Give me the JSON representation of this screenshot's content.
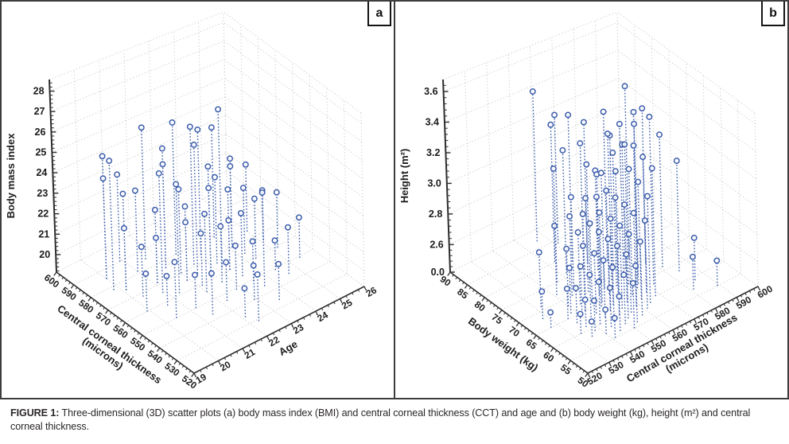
{
  "figure": {
    "caption_label": "FIGURE 1:",
    "caption_line1": " Three-dimensional (3D) scatter plots (a) body mass index (BMI) and central corneal thickness (CCT) and age and (b) body weight (kg), height (m²) and central",
    "caption_line2": "corneal thickness."
  },
  "colors": {
    "marker": "#3c5dab",
    "grid": "#c9c9c9",
    "axis": "#2e2e2e",
    "text": "#1c1c1c",
    "border": "#3d3d3d"
  },
  "chart_data": [
    {
      "type": "scatter3d",
      "panel_label": "a",
      "u_axis": {
        "title_lines": [
          "Age"
        ],
        "range": [
          19,
          26
        ],
        "tick_labels": [
          "19",
          "20",
          "21",
          "22",
          "23",
          "24",
          "25",
          "26"
        ],
        "minors_between": 3
      },
      "v_axis": {
        "title_lines": [
          "Central corneal thickness",
          "(microns)"
        ],
        "range": [
          520,
          600
        ],
        "tick_labels": [
          "520",
          "530",
          "540",
          "550",
          "560",
          "570",
          "580",
          "590",
          "600"
        ],
        "minors_between": 4
      },
      "z_axis": {
        "title": "Body mass index",
        "map": {
          "z0": 19.14,
          "h0": 0,
          "k": 0.1061
        },
        "ticks": [
          [
            "20",
            0.091
          ],
          [
            "21",
            0.197
          ],
          [
            "22",
            0.303
          ],
          [
            "23",
            0.41
          ],
          [
            "24",
            0.516
          ],
          [
            "25",
            0.622
          ],
          [
            "26",
            0.728
          ],
          [
            "27",
            0.834
          ],
          [
            "28",
            0.94
          ]
        ]
      },
      "points": [
        [
          20,
          585,
          24.1
        ],
        [
          20,
          585,
          25.2
        ],
        [
          19.8,
          578,
          25.5
        ],
        [
          20.1,
          575,
          23.9
        ],
        [
          20.1,
          575,
          22.2
        ],
        [
          20.3,
          568,
          21.6
        ],
        [
          19.9,
          560,
          21
        ],
        [
          20.6,
          558,
          20.6
        ],
        [
          20.4,
          550,
          21.9
        ],
        [
          20.9,
          590,
          23.5
        ],
        [
          21,
          581,
          23.2
        ],
        [
          21.1,
          571,
          22.8
        ],
        [
          21.1,
          571,
          21.4
        ],
        [
          20.9,
          565,
          25.1
        ],
        [
          21.3,
          561,
          24.6
        ],
        [
          21.2,
          550,
          20.8
        ],
        [
          21.4,
          543,
          21.2
        ],
        [
          21.6,
          585,
          25.8
        ],
        [
          21.8,
          576,
          25.2
        ],
        [
          21.8,
          576,
          24.4
        ],
        [
          22,
          570,
          23.4
        ],
        [
          21.9,
          565,
          22.9
        ],
        [
          21.9,
          565,
          22.1
        ],
        [
          22.1,
          559,
          21.8
        ],
        [
          22,
          555,
          23.1
        ],
        [
          22.2,
          546,
          21.1
        ],
        [
          22.1,
          534,
          20.6
        ],
        [
          22.3,
          529,
          21.5
        ],
        [
          22.5,
          580,
          25.9
        ],
        [
          22.6,
          571,
          26.2
        ],
        [
          22.4,
          566,
          25.7
        ],
        [
          22.6,
          561,
          24.8
        ],
        [
          22.6,
          561,
          23.7
        ],
        [
          22.7,
          556,
          22
        ],
        [
          22.8,
          549,
          21.4
        ],
        [
          22.9,
          540,
          20.9
        ],
        [
          23.1,
          574,
          25.6
        ],
        [
          23.2,
          563,
          27.3
        ],
        [
          23.2,
          566,
          23.6
        ],
        [
          23.3,
          560,
          23.3
        ],
        [
          23.3,
          560,
          21.7
        ],
        [
          23.4,
          554,
          22.4
        ],
        [
          23.5,
          549,
          21.2
        ],
        [
          23.6,
          544,
          24
        ],
        [
          23.5,
          534,
          21
        ],
        [
          24,
          579,
          24.9
        ],
        [
          24.1,
          570,
          23.8
        ],
        [
          24.1,
          570,
          23.4
        ],
        [
          24.2,
          564,
          22.6
        ],
        [
          24.3,
          559,
          22.3
        ],
        [
          24.4,
          549,
          20.7
        ],
        [
          24.6,
          544,
          21.6
        ],
        [
          25,
          574,
          22.7
        ],
        [
          25.1,
          566,
          21.8
        ],
        [
          25.2,
          559,
          22.1
        ],
        [
          25.4,
          549,
          21.3
        ]
      ]
    },
    {
      "type": "scatter3d",
      "panel_label": "b",
      "u_axis": {
        "title_lines": [
          "Central corneal thickness",
          "(microns)"
        ],
        "range": [
          520,
          600
        ],
        "tick_labels": [
          "520",
          "530",
          "540",
          "550",
          "560",
          "570",
          "580",
          "590",
          "600"
        ],
        "minors_between": 4
      },
      "v_axis": {
        "title_lines": [
          "Body weight (kg)"
        ],
        "range": [
          50,
          90
        ],
        "tick_labels": [
          "50",
          "55",
          "60",
          "65",
          "70",
          "75",
          "80",
          "85",
          "90"
        ],
        "minors_between": 4
      },
      "z_axis": {
        "title": "Height (m²)",
        "map": {
          "z0": 2.6,
          "h0": 0.143,
          "k": 0.795
        },
        "ticks": [
          [
            "0.0",
            0
          ],
          [
            "2.6",
            0.143
          ],
          [
            "2.8",
            0.302
          ],
          [
            "3.0",
            0.461
          ],
          [
            "3.2",
            0.62
          ],
          [
            "3.4",
            0.779
          ],
          [
            "3.6",
            0.938
          ]
        ]
      },
      "points": [
        [
          556,
          87,
          3.44
        ],
        [
          561,
          84,
          3.3
        ],
        [
          552,
          76,
          3.25
        ],
        [
          546,
          75,
          3.18
        ],
        [
          557,
          74,
          3.3
        ],
        [
          562,
          73,
          3.1
        ],
        [
          549,
          72,
          3.02
        ],
        [
          541,
          72,
          2.88
        ],
        [
          555,
          71,
          3.22
        ],
        [
          566,
          71,
          3.35
        ],
        [
          545,
          70,
          2.95
        ],
        [
          558,
          70,
          3.15
        ],
        [
          570,
          70,
          3.28
        ],
        [
          551,
          69,
          3.05
        ],
        [
          562,
          69,
          3.42
        ],
        [
          540,
          68,
          2.8
        ],
        [
          548,
          68,
          2.98
        ],
        [
          557,
          68,
          3.2
        ],
        [
          566,
          68,
          3.48
        ],
        [
          544,
          67,
          2.9
        ],
        [
          553,
          67,
          3.08
        ],
        [
          561,
          67,
          3.33
        ],
        [
          571,
          67,
          3.55
        ],
        [
          538,
          66,
          2.72
        ],
        [
          548,
          66,
          2.95
        ],
        [
          556,
          66,
          3.12
        ],
        [
          565,
          66,
          3.38
        ],
        [
          535,
          65,
          2.62
        ],
        [
          543,
          65,
          2.85
        ],
        [
          551,
          65,
          3.02
        ],
        [
          559,
          65,
          3.25
        ],
        [
          568,
          65,
          3.52
        ],
        [
          540,
          64,
          2.75
        ],
        [
          549,
          64,
          2.92
        ],
        [
          557,
          64,
          3.1
        ],
        [
          566,
          64,
          3.4
        ],
        [
          536,
          63,
          2.65
        ],
        [
          545,
          63,
          2.82
        ],
        [
          553,
          63,
          3
        ],
        [
          562,
          63,
          3.28
        ],
        [
          572,
          63,
          3.58
        ],
        [
          541,
          62,
          2.72
        ],
        [
          550,
          62,
          2.9
        ],
        [
          558,
          62,
          3.08
        ],
        [
          567,
          62,
          3.35
        ],
        [
          537,
          61,
          2.6
        ],
        [
          546,
          61,
          2.8
        ],
        [
          554,
          61,
          2.98
        ],
        [
          563,
          61,
          3.22
        ],
        [
          533,
          60,
          2.55
        ],
        [
          542,
          60,
          2.7
        ],
        [
          551,
          60,
          2.88
        ],
        [
          559,
          60,
          3.05
        ],
        [
          568,
          60,
          3.3
        ],
        [
          538,
          59,
          2.62
        ],
        [
          547,
          59,
          2.78
        ],
        [
          555,
          59,
          2.95
        ],
        [
          564,
          59,
          3.15
        ],
        [
          535,
          58,
          2.52
        ],
        [
          544,
          58,
          2.68
        ],
        [
          552,
          58,
          2.85
        ],
        [
          561,
          58,
          3.02
        ],
        [
          540,
          57,
          2.58
        ],
        [
          549,
          57,
          2.75
        ],
        [
          557,
          57,
          2.92
        ],
        [
          545,
          56,
          2.65
        ],
        [
          553,
          56,
          2.8
        ],
        [
          541,
          55,
          2.55
        ],
        [
          550,
          55,
          2.72
        ],
        [
          575,
          72,
          3.62
        ],
        [
          578,
          69,
          3.5
        ],
        [
          581,
          66,
          3.35
        ],
        [
          584,
          63,
          3.2
        ],
        [
          568,
          74,
          3.45
        ],
        [
          562,
          76,
          3.38
        ],
        [
          558,
          78,
          3.42
        ],
        [
          553,
          80,
          3.35
        ],
        [
          532,
          71,
          2.78
        ],
        [
          528,
          68,
          2.6
        ],
        [
          527,
          65,
          2.52
        ],
        [
          581,
          57,
          2.65
        ],
        [
          589,
          55,
          2.6
        ],
        [
          585,
          59,
          2.72
        ]
      ]
    }
  ]
}
